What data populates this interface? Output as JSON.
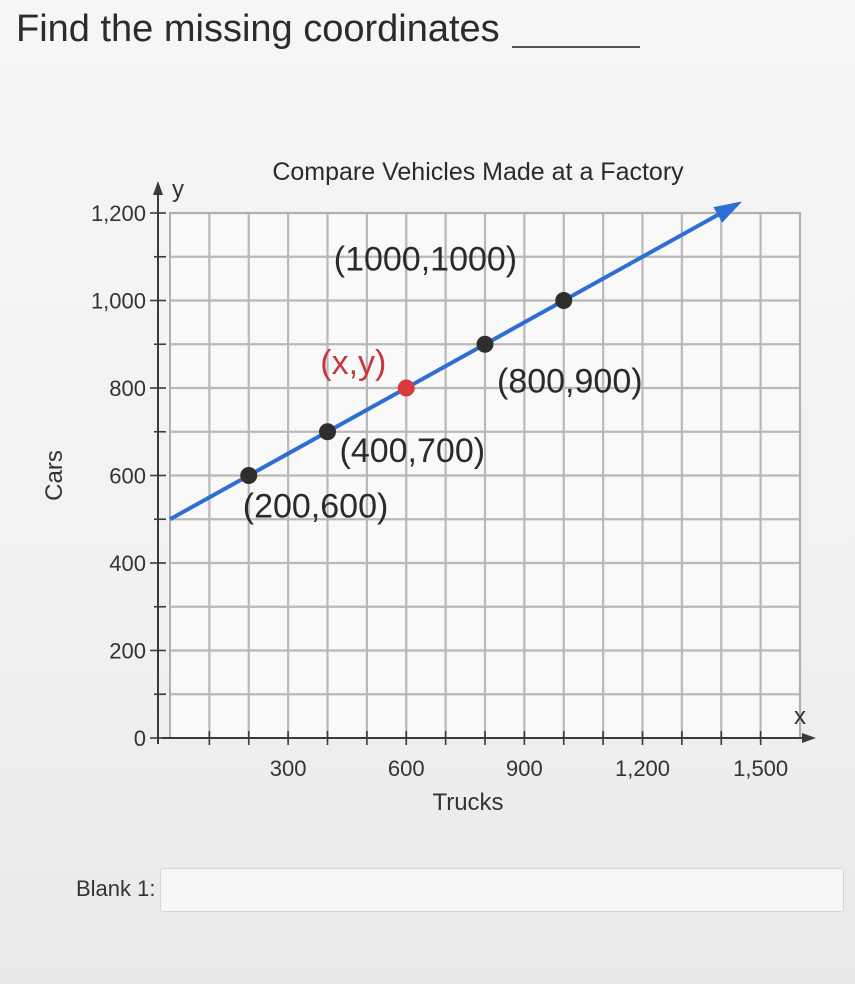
{
  "question": {
    "text": "Find the missing coordinates"
  },
  "blank": {
    "label": "Blank 1:",
    "value": ""
  },
  "chart_data": {
    "type": "line",
    "title": "Compare Vehicles Made at a Factory",
    "xlabel": "Trucks",
    "ylabel": "Cars",
    "x_axis_symbol": "x",
    "y_axis_symbol": "y",
    "xlim": [
      0,
      1600
    ],
    "ylim": [
      0,
      1200
    ],
    "grid": true,
    "x_grid_step": 100,
    "y_grid_step": 100,
    "x_ticks": [
      {
        "value": 300,
        "label": "300"
      },
      {
        "value": 600,
        "label": "600"
      },
      {
        "value": 900,
        "label": "900"
      },
      {
        "value": 1200,
        "label": "1,200"
      },
      {
        "value": 1500,
        "label": "1,500"
      }
    ],
    "y_ticks": [
      {
        "value": 0,
        "label": "0"
      },
      {
        "value": 200,
        "label": "200"
      },
      {
        "value": 400,
        "label": "400"
      },
      {
        "value": 600,
        "label": "600"
      },
      {
        "value": 800,
        "label": "800"
      },
      {
        "value": 1000,
        "label": "1,000"
      },
      {
        "value": 1200,
        "label": "1,200"
      }
    ],
    "line": {
      "x": [
        0,
        1440
      ],
      "y": [
        500,
        1220
      ],
      "color": "#2f6fd4"
    },
    "points": [
      {
        "x": 200,
        "y": 600,
        "label": "(200,600)",
        "color": "#2e2e2e"
      },
      {
        "x": 400,
        "y": 700,
        "label": "(400,700)",
        "color": "#2e2e2e"
      },
      {
        "x": 600,
        "y": 800,
        "label": "(x,y)",
        "color": "#d9393b",
        "label_color": "#c8383a"
      },
      {
        "x": 800,
        "y": 900,
        "label": "(800,900)",
        "color": "#2e2e2e"
      },
      {
        "x": 1000,
        "y": 1000,
        "label": "(1000,1000)",
        "color": "#2e2e2e"
      }
    ]
  }
}
